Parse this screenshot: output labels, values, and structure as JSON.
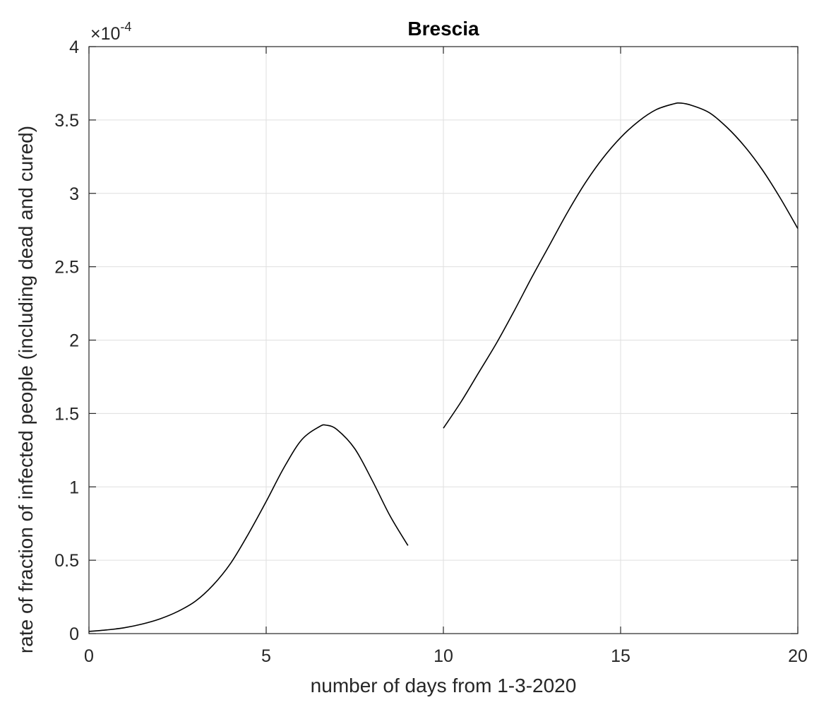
{
  "chart_data": {
    "type": "line",
    "title": "Brescia",
    "xlabel": "number of days from 1-3-2020",
    "ylabel": "rate of fraction of infected people (including dead and cured)",
    "xlim": [
      0,
      20
    ],
    "ylim": [
      0,
      4
    ],
    "xticks": [
      0,
      5,
      10,
      15,
      20
    ],
    "yticks": [
      0,
      0.5,
      1,
      1.5,
      2,
      2.5,
      3,
      3.5,
      4
    ],
    "xtick_labels": [
      "0",
      "5",
      "10",
      "15",
      "20"
    ],
    "ytick_labels": [
      "0",
      "0.5",
      "1",
      "1.5",
      "2",
      "2.5",
      "3",
      "3.5",
      "4"
    ],
    "y_exponent_label": "×10",
    "y_exponent_power": "-4",
    "grid": true,
    "line_color": "#000000",
    "series": [
      {
        "x": [
          0,
          0.5,
          1,
          1.5,
          2,
          2.5,
          3,
          3.5,
          4,
          4.5,
          5,
          5.5,
          6,
          6.5,
          6.7,
          7,
          7.5,
          8,
          8.5,
          9
        ],
        "y": [
          0.015,
          0.025,
          0.04,
          0.065,
          0.1,
          0.15,
          0.22,
          0.33,
          0.48,
          0.68,
          0.9,
          1.13,
          1.32,
          1.41,
          1.42,
          1.39,
          1.26,
          1.04,
          0.8,
          0.6
        ]
      },
      {
        "x": [
          10,
          10.5,
          11,
          11.5,
          12,
          12.5,
          13,
          13.5,
          14,
          14.5,
          15,
          15.5,
          16,
          16.5,
          16.7,
          17,
          17.5,
          18,
          18.5,
          19,
          19.5,
          20
        ],
        "y": [
          1.4,
          1.58,
          1.78,
          1.98,
          2.2,
          2.43,
          2.65,
          2.87,
          3.07,
          3.24,
          3.38,
          3.49,
          3.57,
          3.61,
          3.615,
          3.6,
          3.55,
          3.45,
          3.32,
          3.16,
          2.97,
          2.76
        ]
      }
    ]
  }
}
